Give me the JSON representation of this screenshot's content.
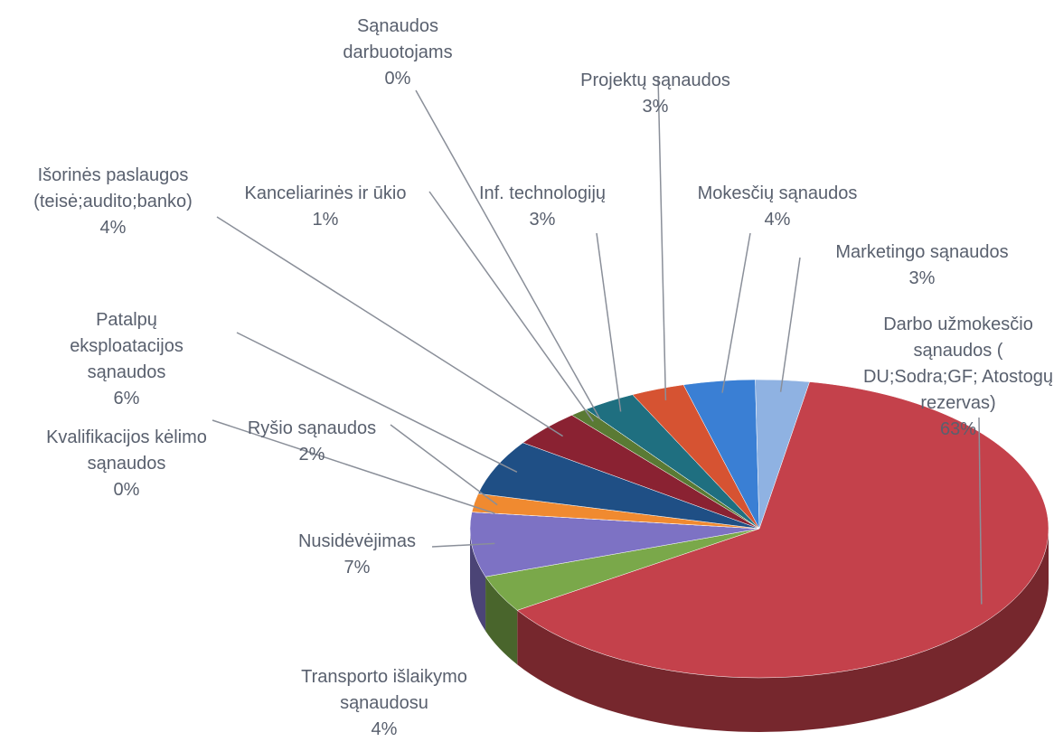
{
  "chart_data": {
    "type": "pie3d",
    "categories": [
      "Darbo užmokesčio sąnaudos ( DU;Sodra;GF; Atostogų rezervas)",
      "Transporto išlaikymo sąnaudosu",
      "Nusidėvėjimas",
      "Kvalifikacijos kėlimo sąnaudos",
      "Ryšio sąnaudos",
      "Patalpų eksploatacijos sąnaudos",
      "Išorinės paslaugos (teisė;audito;banko)",
      "Kanceliarinės ir ūkio",
      "Sąnaudos darbuotojams",
      "Inf. technologijų",
      "Projektų sąnaudos",
      "Mokesčių sąnaudos",
      "Marketingo sąnaudos"
    ],
    "values": [
      63,
      4,
      7,
      0,
      2,
      6,
      4,
      1,
      0,
      3,
      3,
      4,
      3
    ],
    "value_labels": [
      "63%",
      "4%",
      "7%",
      "0%",
      "2%",
      "6%",
      "4%",
      "1%",
      "0%",
      "3%",
      "3%",
      "4%",
      "3%"
    ],
    "colors": [
      "#c4414b",
      "#7aa84a",
      "#7d72c4",
      "#3fa3c8",
      "#f08a30",
      "#1f4f85",
      "#8a2232",
      "#5a7a34",
      "#52336f",
      "#1f6f80",
      "#d65332",
      "#3a7fd4",
      "#8fb2e2"
    ]
  }
}
